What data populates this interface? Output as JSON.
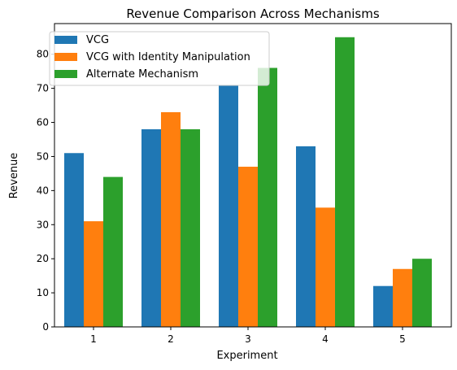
{
  "chart_data": {
    "type": "bar",
    "title": "Revenue Comparison Across Mechanisms",
    "xlabel": "Experiment",
    "ylabel": "Revenue",
    "categories": [
      "1",
      "2",
      "3",
      "4",
      "5"
    ],
    "series": [
      {
        "name": "VCG",
        "color": "#1f77b4",
        "values": [
          51,
          58,
          71,
          53,
          12
        ]
      },
      {
        "name": "VCG with Identity Manipulation",
        "color": "#ff7f0e",
        "values": [
          31,
          63,
          47,
          35,
          17
        ]
      },
      {
        "name": "Alternate Mechanism",
        "color": "#2ca02c",
        "values": [
          44,
          58,
          76,
          85,
          20
        ]
      }
    ],
    "ylim": [
      0,
      89
    ],
    "yticks": [
      0,
      10,
      20,
      30,
      40,
      50,
      60,
      70,
      80
    ],
    "legend_position": "top-left",
    "grid": false
  }
}
